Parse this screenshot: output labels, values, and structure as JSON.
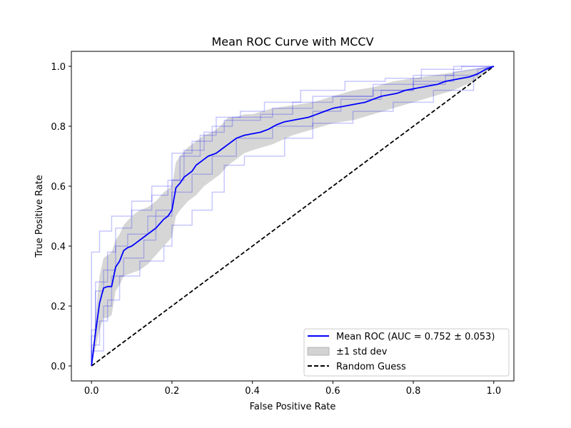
{
  "chart_data": {
    "type": "line",
    "title": "Mean ROC Curve with MCCV",
    "xlabel": "False Positive Rate",
    "ylabel": "True Positive Rate",
    "xlim": [
      -0.05,
      1.05
    ],
    "ylim": [
      -0.05,
      1.05
    ],
    "xticks": [
      0.0,
      0.2,
      0.4,
      0.6,
      0.8,
      1.0
    ],
    "yticks": [
      0.0,
      0.2,
      0.4,
      0.6,
      0.8,
      1.0
    ],
    "xtick_labels": [
      "0.0",
      "0.2",
      "0.4",
      "0.6",
      "0.8",
      "1.0"
    ],
    "ytick_labels": [
      "0.0",
      "0.2",
      "0.4",
      "0.6",
      "0.8",
      "1.0"
    ],
    "grid": false,
    "legend_position": "lower-right",
    "series": [
      {
        "name": "Mean ROC (AUC = 0.752 ± 0.053)",
        "color": "#0000ff",
        "style": "solid",
        "x": [
          0.0,
          0.01,
          0.02,
          0.03,
          0.04,
          0.05,
          0.06,
          0.07,
          0.08,
          0.09,
          0.1,
          0.11,
          0.12,
          0.13,
          0.14,
          0.15,
          0.16,
          0.17,
          0.18,
          0.19,
          0.2,
          0.21,
          0.22,
          0.23,
          0.24,
          0.25,
          0.26,
          0.27,
          0.28,
          0.29,
          0.3,
          0.31,
          0.32,
          0.33,
          0.34,
          0.35,
          0.36,
          0.37,
          0.38,
          0.4,
          0.42,
          0.44,
          0.46,
          0.48,
          0.5,
          0.52,
          0.54,
          0.56,
          0.58,
          0.6,
          0.62,
          0.64,
          0.66,
          0.68,
          0.7,
          0.72,
          0.74,
          0.76,
          0.78,
          0.8,
          0.82,
          0.84,
          0.86,
          0.88,
          0.9,
          0.92,
          0.94,
          0.96,
          0.98,
          1.0
        ],
        "y": [
          0.0,
          0.11,
          0.21,
          0.26,
          0.265,
          0.265,
          0.33,
          0.35,
          0.385,
          0.395,
          0.4,
          0.41,
          0.42,
          0.43,
          0.44,
          0.45,
          0.46,
          0.475,
          0.49,
          0.5,
          0.52,
          0.595,
          0.61,
          0.63,
          0.64,
          0.65,
          0.67,
          0.68,
          0.69,
          0.7,
          0.705,
          0.71,
          0.72,
          0.73,
          0.74,
          0.75,
          0.76,
          0.765,
          0.77,
          0.775,
          0.78,
          0.79,
          0.805,
          0.815,
          0.82,
          0.825,
          0.83,
          0.84,
          0.85,
          0.86,
          0.865,
          0.87,
          0.875,
          0.88,
          0.89,
          0.9,
          0.905,
          0.91,
          0.92,
          0.925,
          0.93,
          0.935,
          0.94,
          0.95,
          0.955,
          0.96,
          0.965,
          0.975,
          0.99,
          1.0
        ]
      },
      {
        "name": "±1 std dev",
        "color": "#c8c8c8",
        "style": "band",
        "x": [
          0.0,
          0.01,
          0.02,
          0.03,
          0.04,
          0.05,
          0.06,
          0.07,
          0.08,
          0.1,
          0.12,
          0.14,
          0.16,
          0.18,
          0.2,
          0.21,
          0.22,
          0.24,
          0.26,
          0.28,
          0.3,
          0.32,
          0.34,
          0.36,
          0.38,
          0.4,
          0.45,
          0.5,
          0.55,
          0.6,
          0.65,
          0.7,
          0.75,
          0.8,
          0.85,
          0.9,
          0.95,
          1.0
        ],
        "upper": [
          0.0,
          0.16,
          0.3,
          0.36,
          0.37,
          0.38,
          0.42,
          0.44,
          0.47,
          0.5,
          0.52,
          0.53,
          0.55,
          0.58,
          0.6,
          0.68,
          0.7,
          0.73,
          0.75,
          0.77,
          0.78,
          0.8,
          0.83,
          0.83,
          0.84,
          0.84,
          0.86,
          0.87,
          0.88,
          0.9,
          0.92,
          0.93,
          0.95,
          0.96,
          0.97,
          0.98,
          0.99,
          1.0
        ],
        "lower": [
          0.0,
          0.06,
          0.12,
          0.16,
          0.16,
          0.17,
          0.25,
          0.27,
          0.3,
          0.31,
          0.32,
          0.34,
          0.37,
          0.4,
          0.43,
          0.5,
          0.52,
          0.55,
          0.57,
          0.6,
          0.62,
          0.64,
          0.67,
          0.69,
          0.71,
          0.72,
          0.74,
          0.77,
          0.79,
          0.81,
          0.82,
          0.84,
          0.86,
          0.88,
          0.9,
          0.92,
          0.95,
          1.0
        ]
      },
      {
        "name": "Random Guess",
        "color": "#000000",
        "style": "dashed",
        "x": [
          0.0,
          1.0
        ],
        "y": [
          0.0,
          1.0
        ]
      }
    ],
    "fold_curves": [
      {
        "x": [
          0.0,
          0.0,
          0.02,
          0.02,
          0.05,
          0.05,
          0.1,
          0.1,
          0.15,
          0.15,
          0.2,
          0.2,
          0.25,
          0.25,
          0.3,
          0.3,
          0.35,
          0.35,
          0.45,
          0.45,
          0.55,
          0.55,
          0.7,
          0.7,
          0.8,
          0.8,
          0.9,
          0.9,
          1.0
        ],
        "y": [
          0.0,
          0.38,
          0.38,
          0.45,
          0.45,
          0.5,
          0.5,
          0.55,
          0.55,
          0.6,
          0.6,
          0.71,
          0.71,
          0.75,
          0.75,
          0.8,
          0.8,
          0.83,
          0.83,
          0.86,
          0.86,
          0.9,
          0.9,
          0.94,
          0.94,
          0.97,
          0.97,
          1.0,
          1.0
        ]
      },
      {
        "x": [
          0.0,
          0.0,
          0.01,
          0.01,
          0.03,
          0.03,
          0.06,
          0.06,
          0.09,
          0.09,
          0.14,
          0.14,
          0.2,
          0.2,
          0.25,
          0.25,
          0.3,
          0.3,
          0.36,
          0.36,
          0.45,
          0.45,
          0.55,
          0.55,
          0.62,
          0.62,
          0.72,
          0.72,
          0.8,
          0.8,
          0.9,
          0.9,
          1.0
        ],
        "y": [
          0.0,
          0.1,
          0.1,
          0.25,
          0.25,
          0.32,
          0.32,
          0.4,
          0.4,
          0.44,
          0.44,
          0.5,
          0.5,
          0.58,
          0.58,
          0.64,
          0.64,
          0.7,
          0.7,
          0.76,
          0.76,
          0.8,
          0.8,
          0.85,
          0.85,
          0.89,
          0.89,
          0.92,
          0.92,
          0.95,
          0.95,
          0.98,
          1.0
        ]
      },
      {
        "x": [
          0.0,
          0.0,
          0.02,
          0.02,
          0.04,
          0.04,
          0.07,
          0.07,
          0.12,
          0.12,
          0.18,
          0.18,
          0.2,
          0.2,
          0.25,
          0.25,
          0.3,
          0.3,
          0.33,
          0.33,
          0.38,
          0.38,
          0.48,
          0.48,
          0.55,
          0.55,
          0.65,
          0.65,
          0.75,
          0.75,
          0.85,
          0.85,
          0.95,
          0.95,
          1.0
        ],
        "y": [
          0.0,
          0.07,
          0.07,
          0.15,
          0.15,
          0.22,
          0.22,
          0.3,
          0.3,
          0.35,
          0.35,
          0.4,
          0.4,
          0.47,
          0.47,
          0.52,
          0.52,
          0.58,
          0.58,
          0.67,
          0.67,
          0.7,
          0.7,
          0.76,
          0.76,
          0.81,
          0.81,
          0.85,
          0.85,
          0.88,
          0.88,
          0.92,
          0.92,
          0.97,
          1.0
        ]
      },
      {
        "x": [
          0.0,
          0.0,
          0.03,
          0.03,
          0.05,
          0.05,
          0.08,
          0.08,
          0.13,
          0.13,
          0.16,
          0.16,
          0.2,
          0.2,
          0.23,
          0.23,
          0.28,
          0.28,
          0.33,
          0.33,
          0.42,
          0.42,
          0.5,
          0.5,
          0.6,
          0.6,
          0.7,
          0.7,
          0.8,
          0.8,
          0.88,
          0.88,
          0.96,
          0.96,
          1.0
        ],
        "y": [
          0.0,
          0.05,
          0.05,
          0.2,
          0.2,
          0.3,
          0.3,
          0.36,
          0.36,
          0.42,
          0.42,
          0.52,
          0.52,
          0.62,
          0.62,
          0.72,
          0.72,
          0.78,
          0.78,
          0.82,
          0.82,
          0.84,
          0.84,
          0.88,
          0.88,
          0.9,
          0.9,
          0.92,
          0.92,
          0.94,
          0.94,
          0.97,
          0.97,
          0.99,
          1.0
        ]
      },
      {
        "x": [
          0.0,
          0.0,
          0.01,
          0.01,
          0.04,
          0.04,
          0.06,
          0.06,
          0.1,
          0.1,
          0.15,
          0.15,
          0.19,
          0.19,
          0.22,
          0.22,
          0.27,
          0.27,
          0.31,
          0.31,
          0.37,
          0.37,
          0.43,
          0.43,
          0.52,
          0.52,
          0.63,
          0.63,
          0.73,
          0.73,
          0.82,
          0.82,
          0.92,
          0.92,
          1.0
        ],
        "y": [
          0.0,
          0.12,
          0.12,
          0.28,
          0.28,
          0.38,
          0.38,
          0.46,
          0.46,
          0.52,
          0.52,
          0.57,
          0.57,
          0.62,
          0.62,
          0.7,
          0.7,
          0.77,
          0.77,
          0.83,
          0.83,
          0.85,
          0.85,
          0.88,
          0.88,
          0.92,
          0.92,
          0.95,
          0.95,
          0.96,
          0.96,
          0.99,
          0.99,
          1.0,
          1.0
        ]
      }
    ]
  }
}
